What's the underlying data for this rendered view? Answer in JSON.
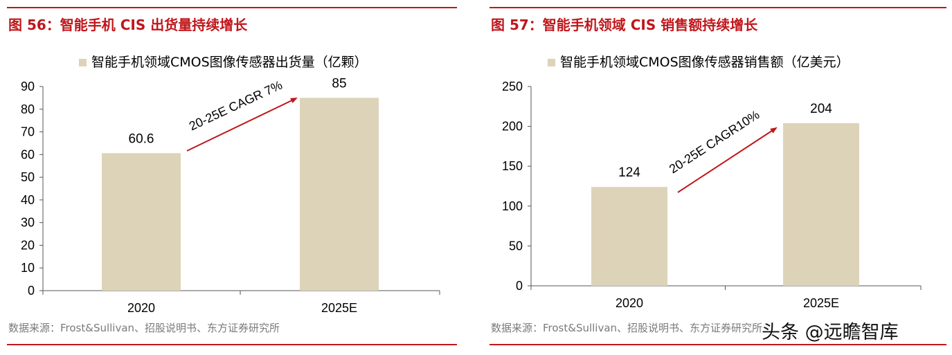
{
  "figures": [
    {
      "title": "图 56：智能手机 CIS 出货量持续增长",
      "source": "数据来源：Frost&Sullivan、招股说明书、东方证券研究所"
    },
    {
      "title": "图 57：智能手机领域 CIS 销售额持续增长",
      "source": "数据来源：Frost&Sullivan、招股说明书、东方证券研究所"
    }
  ],
  "watermark": "头条 @远瞻智库",
  "colors": {
    "accent": "#c0161b",
    "bar": "#ddd3b9",
    "arrow": "#c0161b",
    "source_text": "#7a7a7a"
  },
  "chart_data": [
    {
      "type": "bar",
      "categories": [
        "2020",
        "2025E"
      ],
      "series": [
        {
          "name": "智能手机领域CMOS图像传感器出货量（亿颗）",
          "values": [
            60.6,
            85
          ]
        }
      ],
      "data_labels": [
        "60.6",
        "85"
      ],
      "ylim": [
        0,
        90
      ],
      "yticks": [
        0,
        10,
        20,
        30,
        40,
        50,
        60,
        70,
        80,
        90
      ],
      "annotation": "20-25E CAGR 7%",
      "legend_position": "top",
      "grid": false
    },
    {
      "type": "bar",
      "categories": [
        "2020",
        "2025E"
      ],
      "series": [
        {
          "name": "智能手机领域CMOS图像传感器销售额（亿美元）",
          "values": [
            124,
            204
          ]
        }
      ],
      "data_labels": [
        "124",
        "204"
      ],
      "ylim": [
        0,
        250
      ],
      "yticks": [
        0,
        50,
        100,
        150,
        200,
        250
      ],
      "annotation": "20-25E CAGR10%",
      "legend_position": "top",
      "grid": false
    }
  ]
}
